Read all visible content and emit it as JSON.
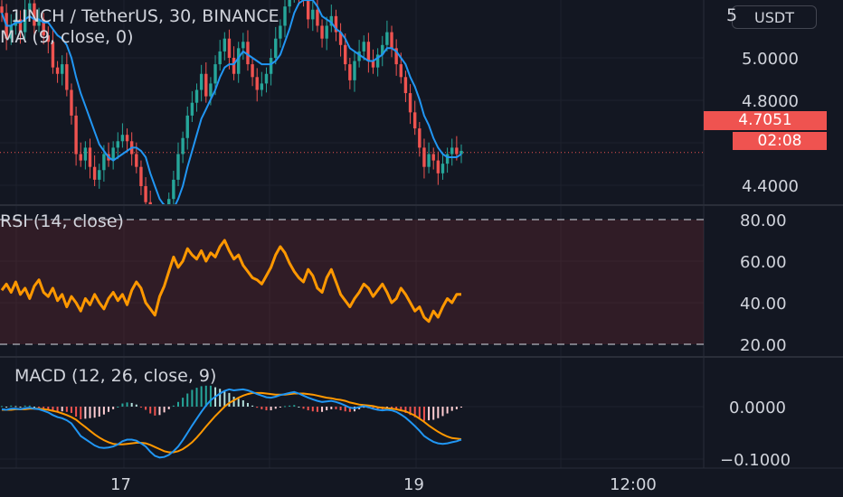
{
  "header": {
    "symbol_title": "1INCH / TetherUS, 30, BINANCE",
    "ma_title": "MA (9, close, 0)",
    "currency_button": "USDT",
    "scale_top_partial": "5"
  },
  "price_pane": {
    "y_ticks": [
      "5.0000",
      "4.8000",
      "4.4000"
    ],
    "last_price": "4.7051",
    "countdown": "02:08",
    "last_price_color": "#ef5350",
    "up_color": "#26a69a",
    "down_color": "#ef5350",
    "ma_color": "#2196f3"
  },
  "rsi_pane": {
    "title": "RSI (14, close)",
    "y_ticks": [
      "80.00",
      "60.00",
      "40.00",
      "20.00"
    ],
    "line_color": "#ff9800",
    "band_color": "#7e2a32"
  },
  "macd_pane": {
    "title": "MACD (12, 26, close, 9)",
    "y_ticks": [
      "0.0000",
      "−0.1000"
    ],
    "macd_color": "#2196f3",
    "signal_color": "#ff9800"
  },
  "x_axis": {
    "labels": [
      "17",
      "19",
      "12:00"
    ]
  },
  "chart_data": [
    {
      "type": "candlestick",
      "title": "1INCH / TetherUS, 30, BINANCE",
      "indicator": "MA (9, close, 0)",
      "ylim": [
        4.35,
        5.3
      ],
      "y_ticks": [
        5.0,
        4.8,
        4.4
      ],
      "last_price": 4.7051,
      "closes": [
        5.14,
        5.06,
        5.1,
        5.12,
        5.08,
        5.15,
        5.17,
        5.1,
        5.12,
        5.07,
        5.05,
        4.97,
        4.95,
        4.98,
        4.9,
        4.82,
        4.7,
        4.68,
        4.72,
        4.66,
        4.62,
        4.65,
        4.7,
        4.68,
        4.72,
        4.74,
        4.76,
        4.74,
        4.7,
        4.66,
        4.6,
        4.55,
        4.47,
        4.42,
        4.45,
        4.51,
        4.56,
        4.62,
        4.7,
        4.75,
        4.82,
        4.86,
        4.9,
        4.95,
        4.88,
        4.92,
        4.98,
        5.02,
        5.06,
        5.0,
        4.95,
        5.03,
        5.05,
        4.98,
        4.94,
        4.9,
        4.92,
        4.95,
        5.0,
        5.06,
        5.1,
        5.16,
        5.2,
        5.23,
        5.2,
        5.18,
        5.12,
        5.15,
        5.1,
        5.06,
        5.1,
        5.13,
        5.08,
        5.04,
        4.98,
        4.93,
        4.99,
        5.02,
        5.05,
        4.99,
        4.97,
        5.01,
        5.04,
        5.08,
        5.03,
        4.98,
        4.94,
        4.89,
        4.83,
        4.78,
        4.72,
        4.66,
        4.7,
        4.68,
        4.64,
        4.67,
        4.7,
        4.72,
        4.7,
        4.71
      ],
      "ma9": [
        5.14,
        5.1,
        5.1,
        5.11,
        5.11,
        5.12,
        5.13,
        5.12,
        5.12,
        5.11,
        5.11,
        5.09,
        5.07,
        5.06,
        5.04,
        5.0,
        4.94,
        4.89,
        4.85,
        4.81,
        4.77,
        4.73,
        4.71,
        4.69,
        4.68,
        4.69,
        4.7,
        4.71,
        4.72,
        4.72,
        4.71,
        4.69,
        4.64,
        4.6,
        4.56,
        4.54,
        4.52,
        4.53,
        4.56,
        4.6,
        4.66,
        4.71,
        4.76,
        4.81,
        4.84,
        4.87,
        4.9,
        4.94,
        4.97,
        4.98,
        4.98,
        5.0,
        5.02,
        5.01,
        5.0,
        4.99,
        4.98,
        4.98,
        4.98,
        4.99,
        5.01,
        5.05,
        5.09,
        5.14,
        5.17,
        5.18,
        5.18,
        5.18,
        5.16,
        5.13,
        5.12,
        5.11,
        5.09,
        5.08,
        5.06,
        5.03,
        5.02,
        5.01,
        5.0,
        4.99,
        4.99,
        5.0,
        5.01,
        5.03,
        5.03,
        5.02,
        5.0,
        4.98,
        4.94,
        4.91,
        4.87,
        4.82,
        4.79,
        4.75,
        4.72,
        4.7,
        4.69,
        4.69,
        4.69,
        4.7
      ]
    },
    {
      "type": "line",
      "title": "RSI (14, close)",
      "ylim": [
        15,
        85
      ],
      "y_ticks": [
        80,
        60,
        40,
        20
      ],
      "band": [
        20,
        80
      ],
      "values": [
        46,
        49,
        45,
        50,
        44,
        47,
        42,
        48,
        51,
        45,
        43,
        47,
        41,
        44,
        38,
        43,
        40,
        36,
        42,
        39,
        44,
        40,
        37,
        42,
        45,
        41,
        44,
        39,
        46,
        50,
        47,
        40,
        37,
        34,
        43,
        48,
        55,
        62,
        57,
        60,
        66,
        63,
        61,
        65,
        60,
        64,
        62,
        67,
        70,
        65,
        61,
        63,
        58,
        55,
        52,
        51,
        49,
        53,
        57,
        63,
        67,
        64,
        59,
        55,
        52,
        50,
        56,
        53,
        47,
        45,
        52,
        56,
        50,
        44,
        41,
        38,
        42,
        45,
        49,
        47,
        43,
        46,
        49,
        45,
        40,
        42,
        47,
        44,
        40,
        36,
        38,
        33,
        31,
        36,
        33,
        38,
        42,
        40,
        44,
        44
      ]
    },
    {
      "type": "line",
      "title": "MACD (12, 26, close, 9)",
      "ylim": [
        -0.12,
        0.06
      ],
      "y_ticks": [
        0.0,
        -0.1
      ],
      "series": [
        {
          "name": "MACD",
          "values": [
            -0.005,
            -0.006,
            -0.004,
            -0.004,
            -0.005,
            -0.003,
            -0.002,
            -0.004,
            -0.005,
            -0.008,
            -0.011,
            -0.016,
            -0.02,
            -0.022,
            -0.026,
            -0.032,
            -0.044,
            -0.056,
            -0.062,
            -0.068,
            -0.074,
            -0.078,
            -0.079,
            -0.078,
            -0.076,
            -0.072,
            -0.066,
            -0.063,
            -0.063,
            -0.065,
            -0.07,
            -0.076,
            -0.086,
            -0.094,
            -0.097,
            -0.096,
            -0.092,
            -0.085,
            -0.076,
            -0.064,
            -0.05,
            -0.036,
            -0.023,
            -0.01,
            0.002,
            0.012,
            0.019,
            0.025,
            0.03,
            0.033,
            0.031,
            0.032,
            0.033,
            0.031,
            0.028,
            0.024,
            0.021,
            0.018,
            0.017,
            0.019,
            0.022,
            0.024,
            0.026,
            0.028,
            0.025,
            0.021,
            0.017,
            0.014,
            0.011,
            0.009,
            0.01,
            0.011,
            0.009,
            0.006,
            0.002,
            -0.002,
            -0.003,
            -0.001,
            0.001,
            -0.001,
            -0.004,
            -0.006,
            -0.007,
            -0.006,
            -0.007,
            -0.01,
            -0.015,
            -0.021,
            -0.029,
            -0.037,
            -0.046,
            -0.056,
            -0.062,
            -0.067,
            -0.07,
            -0.071,
            -0.07,
            -0.068,
            -0.066,
            -0.063
          ]
        },
        {
          "name": "Signal",
          "values": [
            -0.006,
            -0.006,
            -0.006,
            -0.005,
            -0.005,
            -0.005,
            -0.004,
            -0.004,
            -0.004,
            -0.005,
            -0.006,
            -0.008,
            -0.01,
            -0.013,
            -0.016,
            -0.02,
            -0.025,
            -0.032,
            -0.039,
            -0.046,
            -0.053,
            -0.059,
            -0.064,
            -0.068,
            -0.071,
            -0.072,
            -0.072,
            -0.071,
            -0.07,
            -0.069,
            -0.069,
            -0.07,
            -0.073,
            -0.077,
            -0.081,
            -0.085,
            -0.087,
            -0.087,
            -0.085,
            -0.081,
            -0.075,
            -0.068,
            -0.059,
            -0.049,
            -0.038,
            -0.028,
            -0.018,
            -0.009,
            0.0,
            0.007,
            0.012,
            0.017,
            0.021,
            0.024,
            0.026,
            0.026,
            0.026,
            0.025,
            0.024,
            0.023,
            0.023,
            0.023,
            0.024,
            0.025,
            0.025,
            0.025,
            0.024,
            0.023,
            0.021,
            0.019,
            0.017,
            0.016,
            0.014,
            0.013,
            0.011,
            0.008,
            0.006,
            0.004,
            0.003,
            0.002,
            0.001,
            -0.001,
            -0.002,
            -0.003,
            -0.004,
            -0.005,
            -0.007,
            -0.009,
            -0.013,
            -0.017,
            -0.023,
            -0.029,
            -0.036,
            -0.042,
            -0.048,
            -0.053,
            -0.057,
            -0.06,
            -0.061,
            -0.062
          ]
        }
      ]
    }
  ]
}
